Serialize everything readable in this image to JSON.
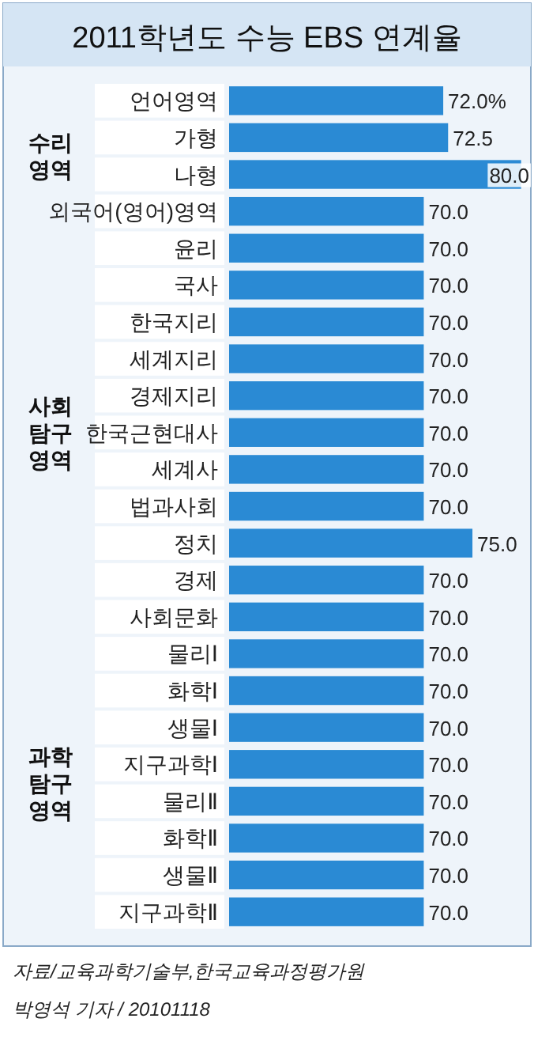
{
  "chart_data": {
    "type": "bar",
    "orientation": "horizontal",
    "title": "2011학년도 수능 EBS 연계율",
    "categories": [
      "언어영역",
      "가형",
      "나형",
      "외국어(영어)영역",
      "윤리",
      "국사",
      "한국지리",
      "세계지리",
      "경제지리",
      "한국근현대사",
      "세계사",
      "법과사회",
      "정치",
      "경제",
      "사회문화",
      "물리Ⅰ",
      "화학Ⅰ",
      "생물Ⅰ",
      "지구과학Ⅰ",
      "물리Ⅱ",
      "화학Ⅱ",
      "생물Ⅱ",
      "지구과학Ⅱ"
    ],
    "values": [
      72.0,
      72.5,
      80.0,
      70.0,
      70.0,
      70.0,
      70.0,
      70.0,
      70.0,
      70.0,
      70.0,
      70.0,
      75.0,
      70.0,
      70.0,
      70.0,
      70.0,
      70.0,
      70.0,
      70.0,
      70.0,
      70.0,
      70.0
    ],
    "value_labels": [
      "72.0%",
      "72.5",
      "80.0",
      "70.0",
      "70.0",
      "70.0",
      "70.0",
      "70.0",
      "70.0",
      "70.0",
      "70.0",
      "70.0",
      "75.0",
      "70.0",
      "70.0",
      "70.0",
      "70.0",
      "70.0",
      "70.0",
      "70.0",
      "70.0",
      "70.0",
      "70.0"
    ],
    "color": "#2a8ad4",
    "xlim": [
      50,
      81
    ],
    "annotations": [
      "수리 영역",
      "사회 탐구 영역",
      "과학 탐구 영역",
      "자료/교육과학기술부,한국교육과정평가원",
      "박영석 기자 / 20101118"
    ]
  }
}
